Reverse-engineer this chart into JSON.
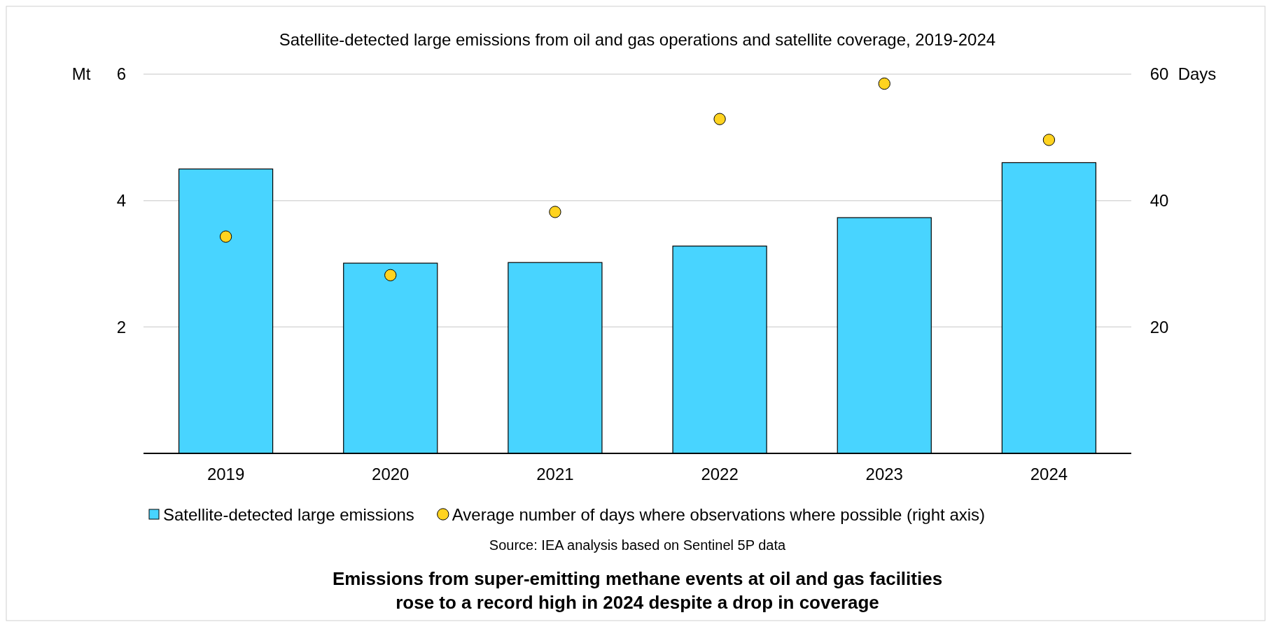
{
  "chart_data": {
    "type": "bar",
    "title": "Satellite-detected large emissions from oil and gas operations and satellite coverage, 2019-2024",
    "categories": [
      "2019",
      "2020",
      "2021",
      "2022",
      "2023",
      "2024"
    ],
    "series": [
      {
        "name": "Satellite-detected large emissions",
        "color": "#48d4ff",
        "values": [
          4.5,
          3.01,
          3.02,
          3.28,
          3.73,
          4.6
        ]
      },
      {
        "name": "Average number of days where observations where possible  (right axis)",
        "type": "scatter",
        "axis": "y2",
        "marker": "circle",
        "color": "#ffd320",
        "values": [
          34.3,
          28.2,
          38.2,
          52.9,
          58.5,
          49.6
        ]
      }
    ],
    "ylabel": "Mt",
    "y2label": "Days",
    "ylim": [
      0,
      6
    ],
    "yticks": [
      2,
      4,
      6
    ],
    "y2lim": [
      0,
      60
    ],
    "y2ticks": [
      20,
      40,
      60
    ],
    "grid": "y",
    "legend": "bottom",
    "annotations": [
      "Source: IEA analysis based on Sentinel 5P data",
      "Emissions from super-emitting methane events at oil and gas facilities rose to a record high in 2024 despite a drop in coverage"
    ]
  }
}
